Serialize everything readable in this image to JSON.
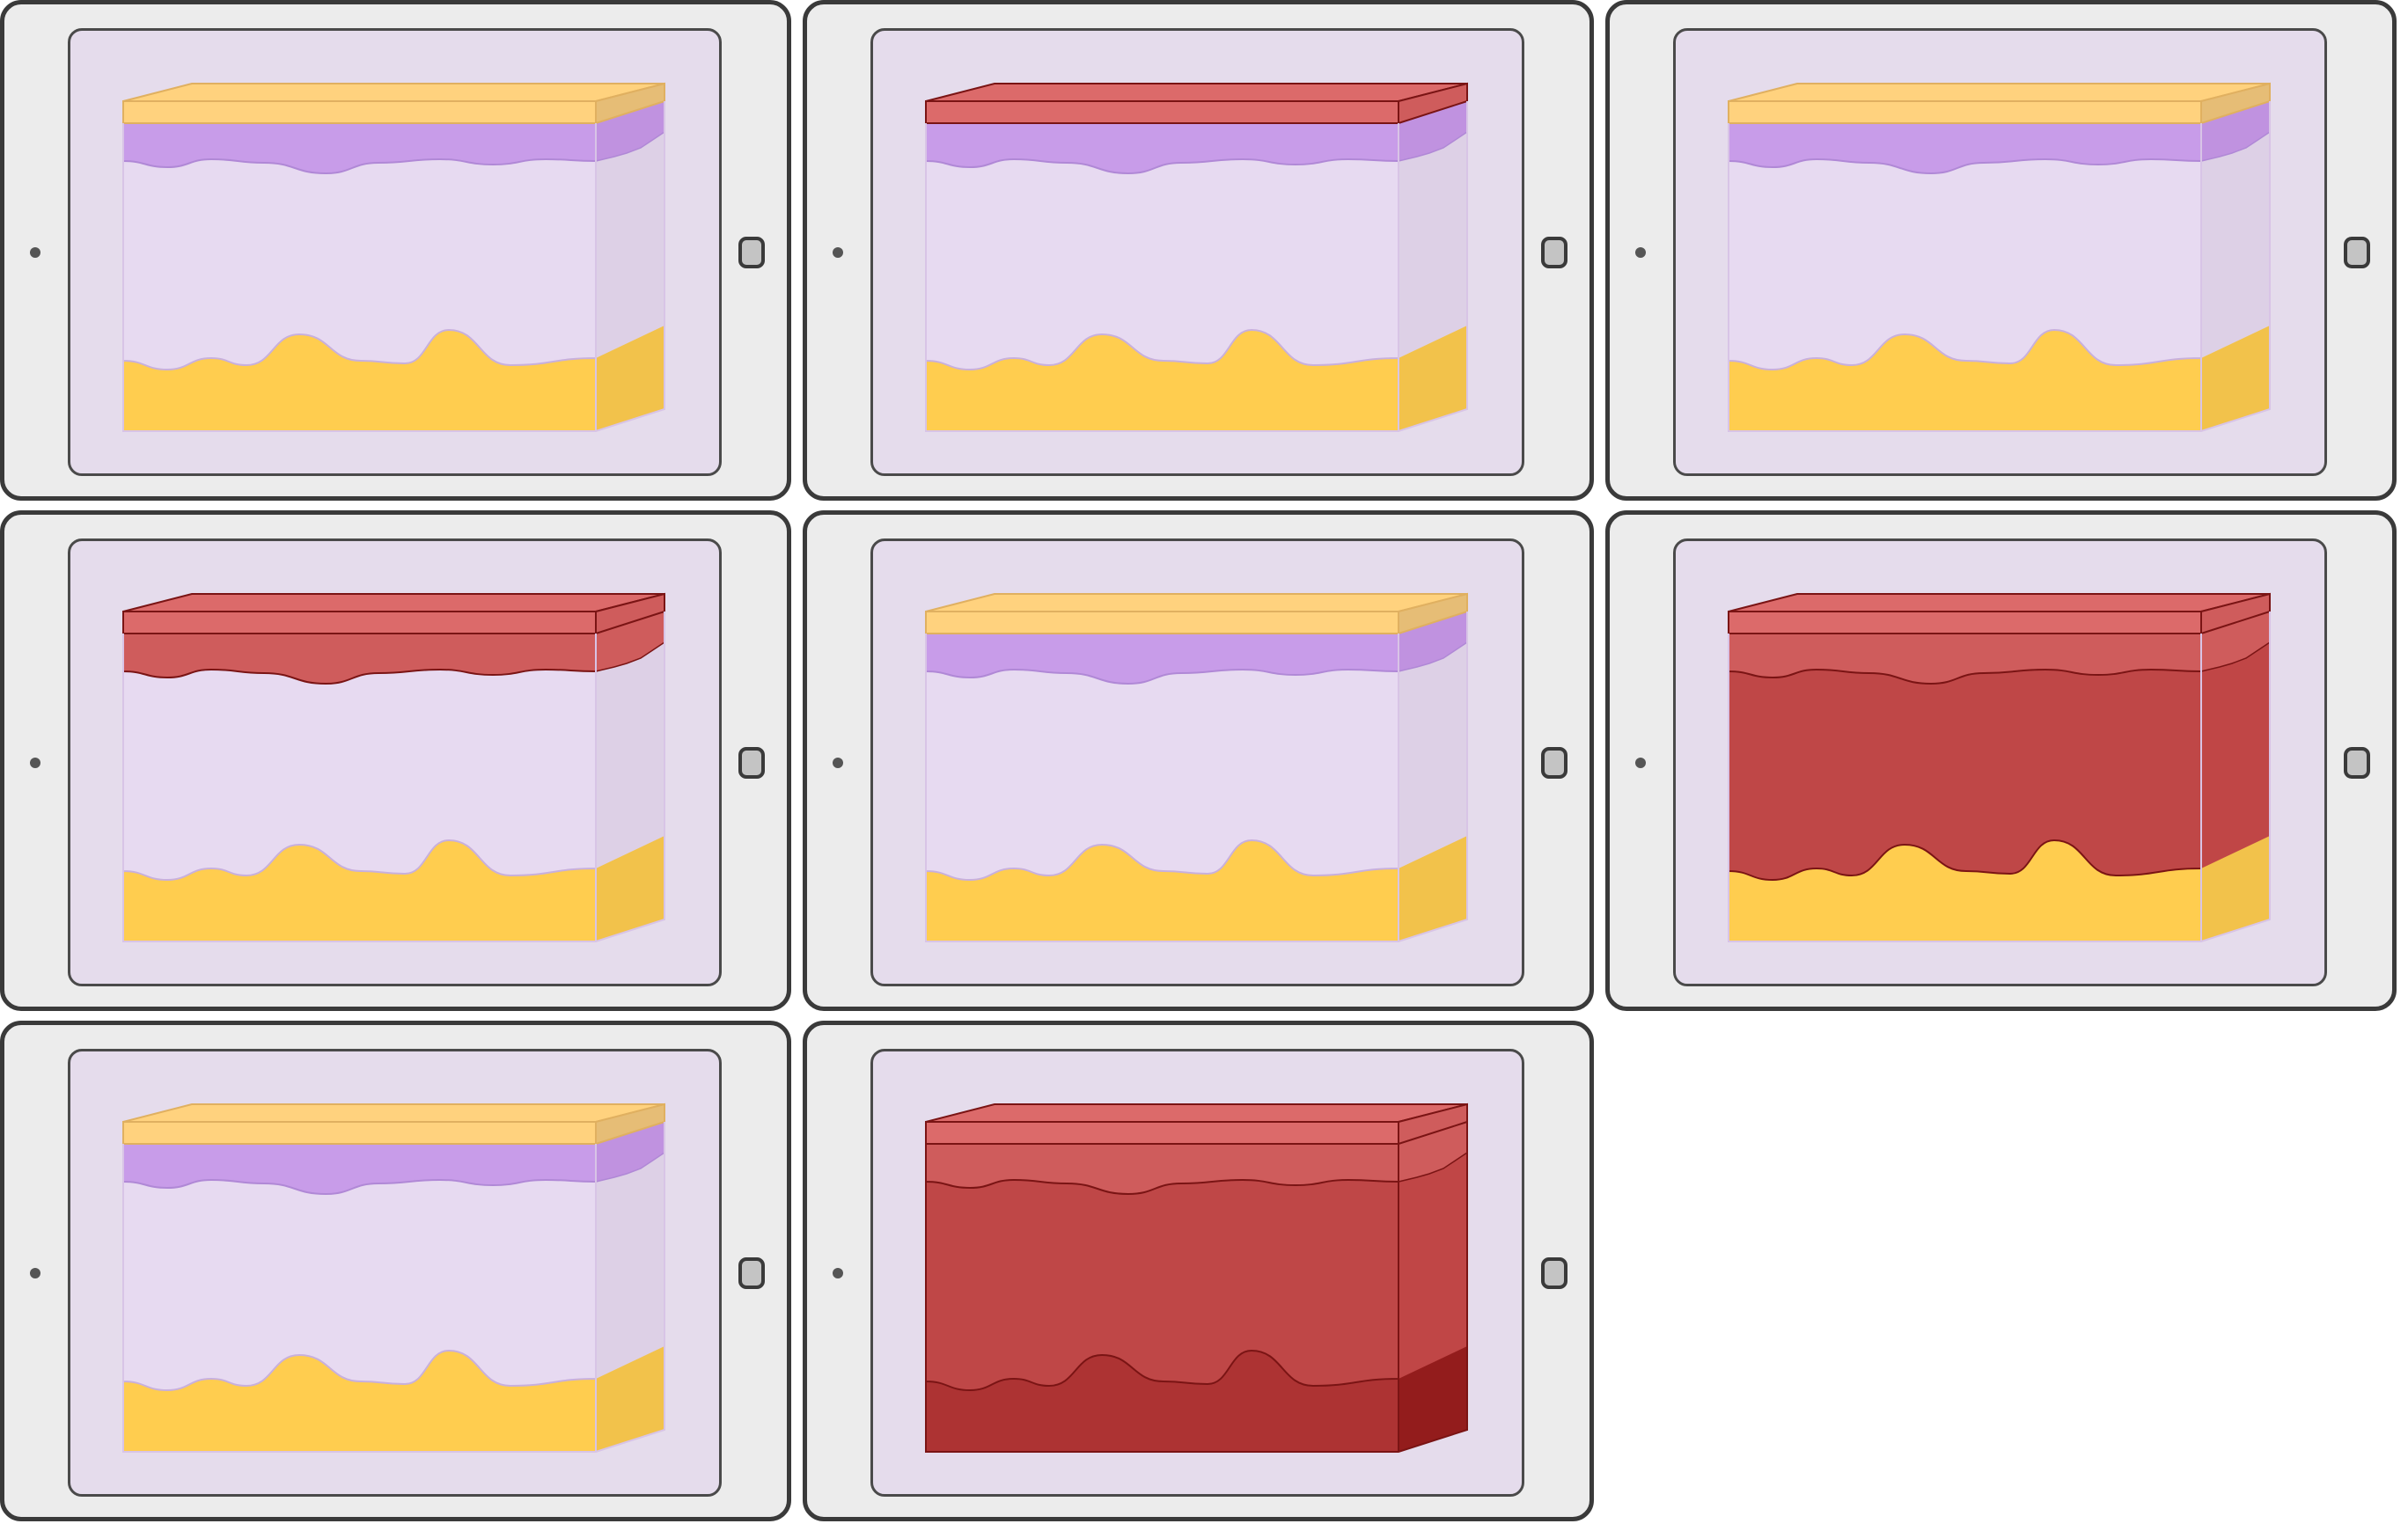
{
  "palette": {
    "yellow_top": "#ffd27e",
    "yellow_top_side": "#e6bd76",
    "purple": "#c89ce9",
    "purple_side": "#c092e0",
    "lavender": "#e7daf1",
    "lavender_side": "#ddd0e6",
    "fat": "#ffcd4f",
    "fat_side": "#f2c24b",
    "red_top": "#dc6a6a",
    "red_mid": "#cf5c5c",
    "red_deep": "#bf4747",
    "red_deeper": "#ad3333",
    "red_side": "#c04646",
    "red_dark_side": "#931c1c",
    "outline_red": "#7a1414",
    "tablet_frame": "#3a3a3a",
    "tablet_body": "#ececec",
    "screen_bg": "#e5dcec"
  },
  "tablets": [
    {
      "id": "t1",
      "top_cap": "yellow",
      "epidermis": "purple",
      "dermis": "lavender",
      "base": "fat"
    },
    {
      "id": "t2",
      "top_cap": "red",
      "epidermis": "purple",
      "dermis": "lavender",
      "base": "fat"
    },
    {
      "id": "t3",
      "top_cap": "yellow",
      "epidermis": "purple",
      "dermis": "lavender",
      "base": "fat"
    },
    {
      "id": "t4",
      "top_cap": "red",
      "epidermis": "red",
      "dermis": "lavender",
      "base": "fat"
    },
    {
      "id": "t5",
      "top_cap": "yellow",
      "epidermis": "purple",
      "dermis": "lavender",
      "base": "fat"
    },
    {
      "id": "t6",
      "top_cap": "red",
      "epidermis": "red",
      "dermis": "red",
      "base": "fat"
    },
    {
      "id": "t7",
      "top_cap": "yellow",
      "epidermis": "purple",
      "dermis": "lavender",
      "base": "fat"
    },
    {
      "id": "t8",
      "top_cap": "red",
      "epidermis": "red",
      "dermis": "red",
      "base": "red"
    }
  ]
}
